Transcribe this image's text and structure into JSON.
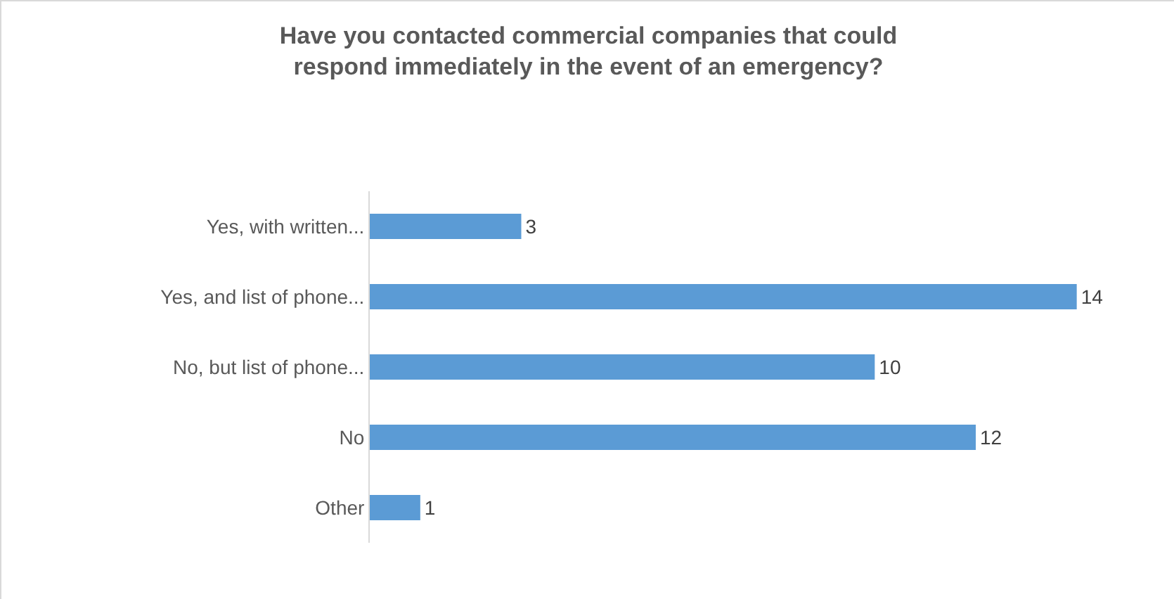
{
  "chart_data": {
    "type": "bar",
    "orientation": "horizontal",
    "title": "Have you contacted commercial companies that could respond immediately in the event of an emergency?",
    "categories": [
      "Yes, with written...",
      "Yes, and list of phone...",
      "No, but list of phone...",
      "No",
      "Other"
    ],
    "values": [
      3,
      14,
      10,
      12,
      1
    ],
    "color": "#5b9bd5",
    "data_labels": true
  }
}
